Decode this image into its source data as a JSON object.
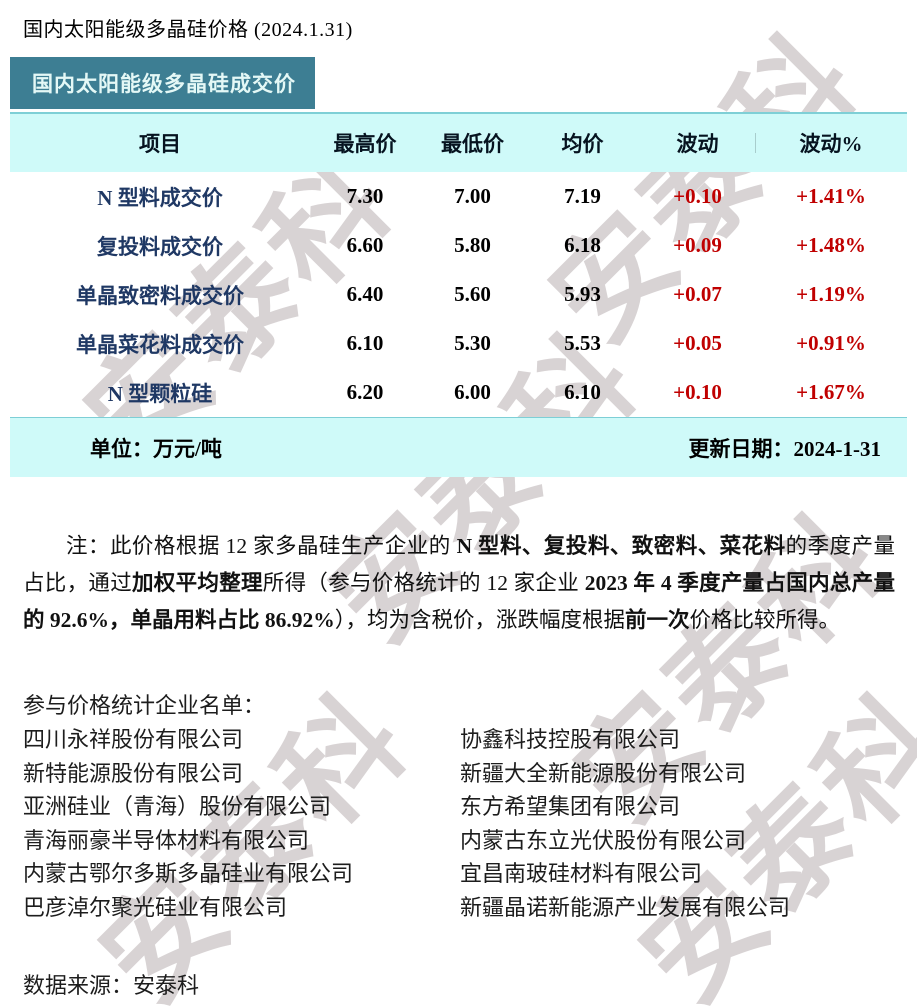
{
  "page": {
    "title": "国内太阳能级多晶硅价格 (2024.1.31)",
    "banner": "国内太阳能级多晶硅成交价"
  },
  "table": {
    "headers": [
      "项目",
      "最高价",
      "最低价",
      "均价",
      "波动",
      "波动%"
    ],
    "rows": [
      {
        "item": "N 型料成交价",
        "high": "7.30",
        "low": "7.00",
        "avg": "7.19",
        "change": "+0.10",
        "change_pct": "+1.41%"
      },
      {
        "item": "复投料成交价",
        "high": "6.60",
        "low": "5.80",
        "avg": "6.18",
        "change": "+0.09",
        "change_pct": "+1.48%"
      },
      {
        "item": "单晶致密料成交价",
        "high": "6.40",
        "low": "5.60",
        "avg": "5.93",
        "change": "+0.07",
        "change_pct": "+1.19%"
      },
      {
        "item": "单晶菜花料成交价",
        "high": "6.10",
        "low": "5.30",
        "avg": "5.53",
        "change": "+0.05",
        "change_pct": "+0.91%"
      },
      {
        "item": "N 型颗粒硅",
        "high": "6.20",
        "low": "6.00",
        "avg": "6.10",
        "change": "+0.10",
        "change_pct": "+1.67%"
      }
    ],
    "unit_label": "单位：万元/吨",
    "update_label": "更新日期：2024-1-31"
  },
  "note": {
    "segments": [
      {
        "text": "注：此价格根据 12 家多晶硅生产企业的 ",
        "bold": false
      },
      {
        "text": "N 型料、复投料、致密料、菜花料",
        "bold": true
      },
      {
        "text": "的季度产量占比，通过",
        "bold": false
      },
      {
        "text": "加权平均整理",
        "bold": true
      },
      {
        "text": "所得（参与价格统计的 12 家企业 ",
        "bold": false
      },
      {
        "text": "2023 年 4 季度产量占国内总产量的 92.6%，单晶用料占比 86.92%",
        "bold": true
      },
      {
        "text": "），均为含税价，涨跌幅度根据",
        "bold": false
      },
      {
        "text": "前一次",
        "bold": true
      },
      {
        "text": "价格比较所得。",
        "bold": false
      }
    ]
  },
  "companies": {
    "heading": "参与价格统计企业名单：",
    "left": [
      "四川永祥股份有限公司",
      "新特能源股份有限公司",
      "亚洲硅业（青海）股份有限公司",
      "青海丽豪半导体材料有限公司",
      "内蒙古鄂尔多斯多晶硅业有限公司",
      "巴彦淖尔聚光硅业有限公司"
    ],
    "right": [
      "协鑫科技控股有限公司",
      "新疆大全新能源股份有限公司",
      "东方希望集团有限公司",
      "内蒙古东立光伏股份有限公司",
      "宜昌南玻硅材料有限公司",
      "新疆晶诺新能源产业发展有限公司"
    ]
  },
  "source": "数据来源：安泰科",
  "watermark": {
    "text": "安泰科"
  },
  "colors": {
    "teal": "#3D7E93",
    "band": "#CFFAF9",
    "navy": "#1F3864",
    "red": "#C00000",
    "watermark_gray": "#B2A8AA"
  }
}
